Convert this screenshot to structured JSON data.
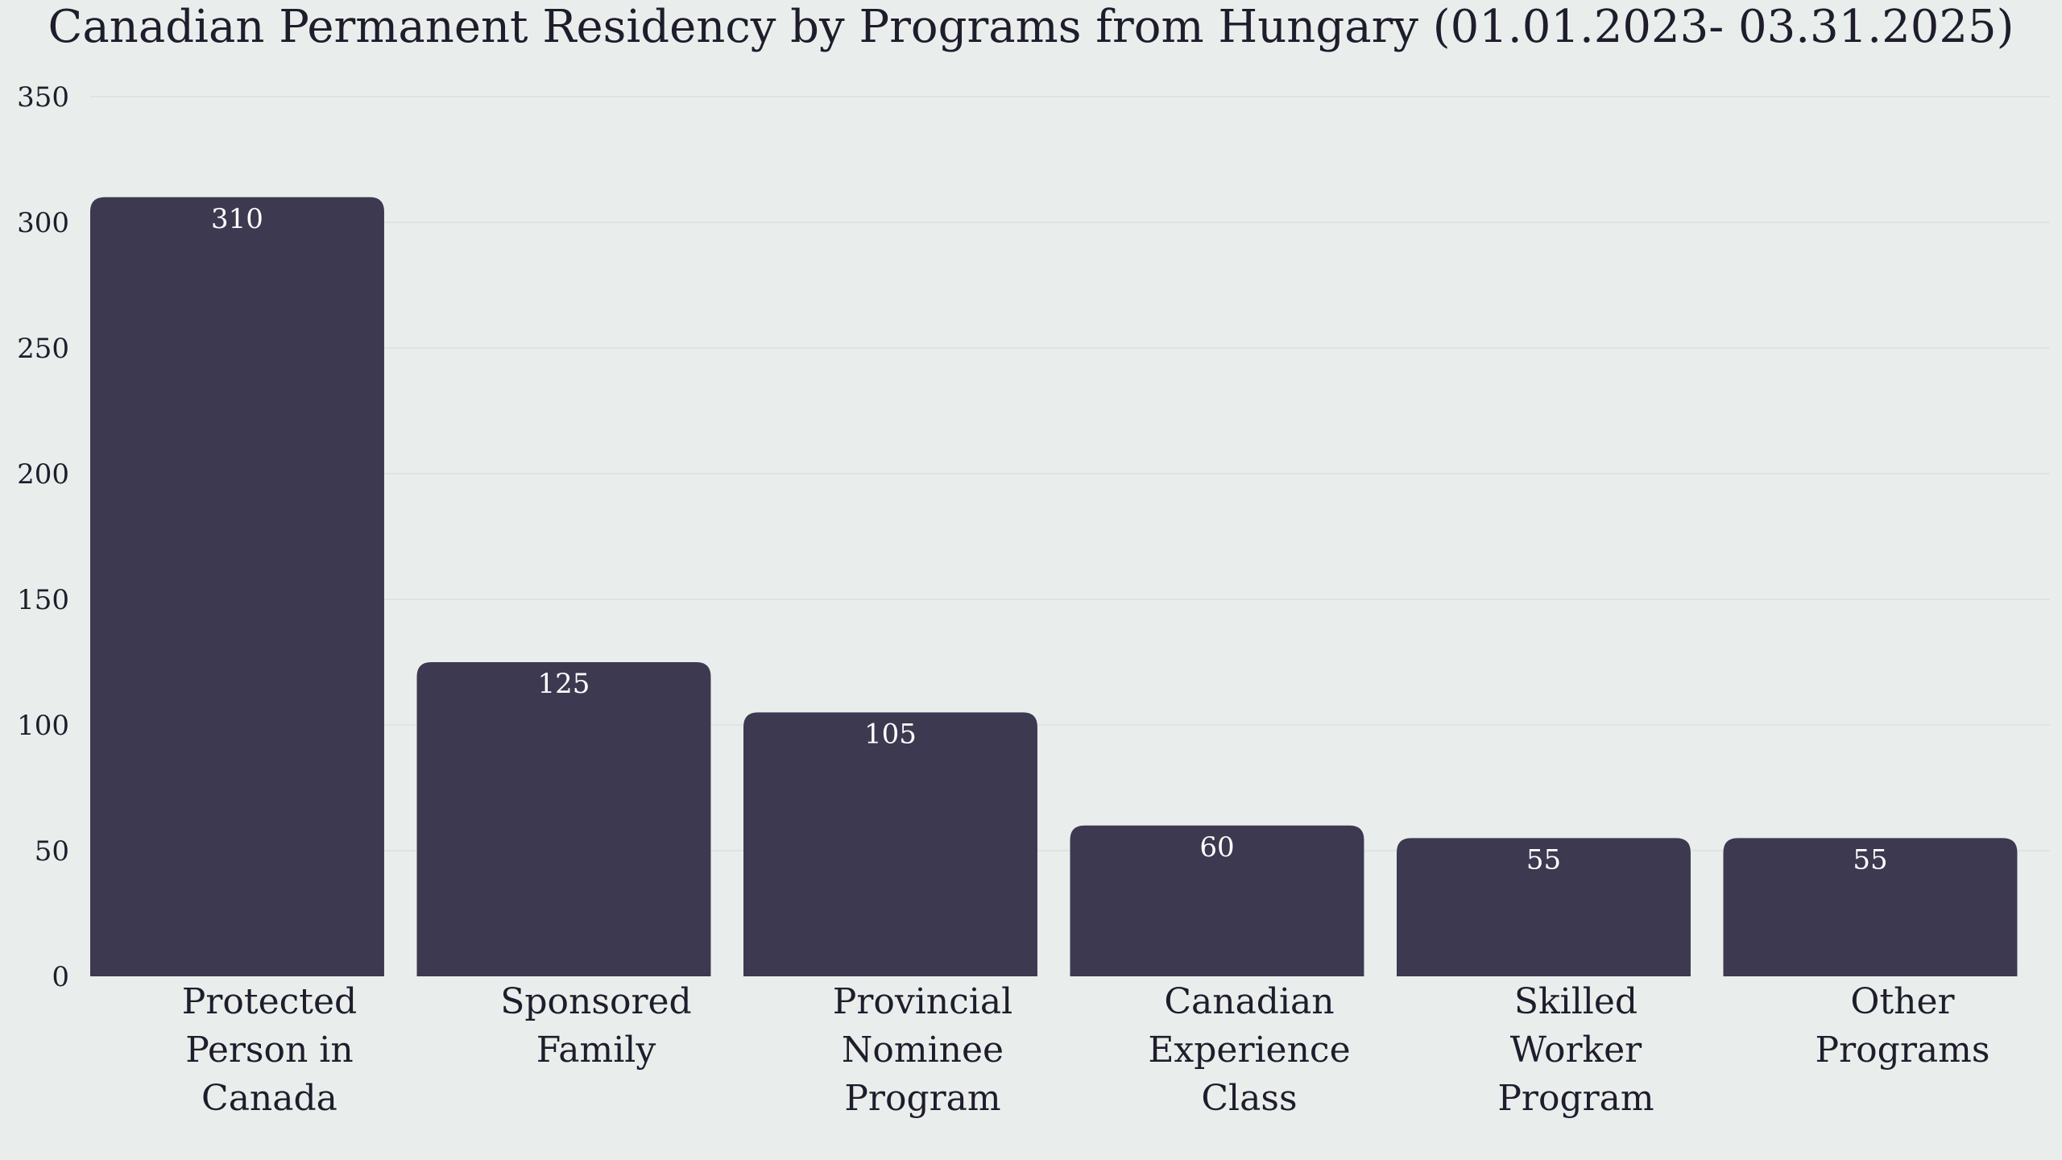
{
  "chart_data": {
    "type": "bar",
    "title": "Canadian Permanent Residency by Programs from Hungary (01.01.2023- 03.31.2025)",
    "xlabel": "",
    "ylabel": "",
    "categories": [
      [
        "Protected",
        "Person in",
        "Canada"
      ],
      [
        "Sponsored",
        "Family"
      ],
      [
        "Provincial",
        "Nominee",
        "Program"
      ],
      [
        "Canadian",
        "Experience",
        "Class"
      ],
      [
        "Skilled",
        "Worker",
        "Program"
      ],
      [
        "Other",
        "Programs"
      ]
    ],
    "values": [
      310,
      125,
      105,
      60,
      55,
      55
    ],
    "data_labels": [
      "310",
      "125",
      "105",
      "60",
      "55",
      "55"
    ],
    "ylim": [
      0,
      350
    ],
    "yticks": [
      0,
      50,
      100,
      150,
      200,
      250,
      300,
      350
    ],
    "grid": true,
    "legend": "none",
    "colors": {
      "bar": "#3d3950",
      "background": "#e9eeed",
      "grid": "#dcdfe0",
      "text": "#1f1d2b",
      "data_label": "#ffffff"
    }
  }
}
